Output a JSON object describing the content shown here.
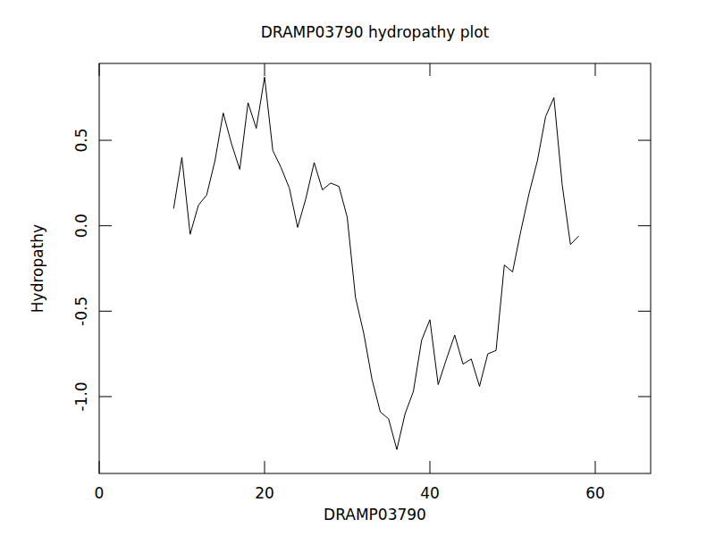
{
  "chart_data": {
    "type": "line",
    "title": "DRAMP03790 hydropathy plot",
    "x_label": "DRAMP03790",
    "y_label": "Hydropathy",
    "x": [
      9,
      10,
      11,
      12,
      13,
      14,
      15,
      16,
      17,
      18,
      19,
      20,
      21,
      22,
      23,
      24,
      25,
      26,
      27,
      28,
      29,
      30,
      31,
      32,
      33,
      34,
      35,
      36,
      37,
      38,
      39,
      40,
      41,
      42,
      43,
      44,
      45,
      46,
      47,
      48,
      49,
      50,
      51,
      52,
      53,
      54,
      55,
      56,
      57,
      58
    ],
    "series": [
      {
        "name": "Hydropathy",
        "color": "#000000",
        "values": [
          0.1,
          0.4,
          -0.05,
          0.12,
          0.18,
          0.38,
          0.66,
          0.48,
          0.33,
          0.72,
          0.57,
          0.87,
          0.44,
          0.34,
          0.22,
          -0.01,
          0.16,
          0.37,
          0.21,
          0.25,
          0.23,
          0.05,
          -0.42,
          -0.63,
          -0.9,
          -1.09,
          -1.13,
          -1.31,
          -1.1,
          -0.97,
          -0.67,
          -0.55,
          -0.93,
          -0.78,
          -0.64,
          -0.81,
          -0.78,
          -0.94,
          -0.75,
          -0.73,
          -0.23,
          -0.27,
          -0.03,
          0.19,
          0.38,
          0.64,
          0.75,
          0.24,
          -0.11,
          -0.06
        ]
      }
    ],
    "xlim": [
      0,
      66.7
    ],
    "ylim": [
      -1.45,
      0.95
    ],
    "xticks": [
      0,
      20,
      40,
      60
    ],
    "yticks": [
      {
        "value": -1,
        "label": "-1.0"
      },
      -0.5,
      {
        "value": 0,
        "label": "0.0"
      },
      0.5
    ],
    "grid": false
  }
}
